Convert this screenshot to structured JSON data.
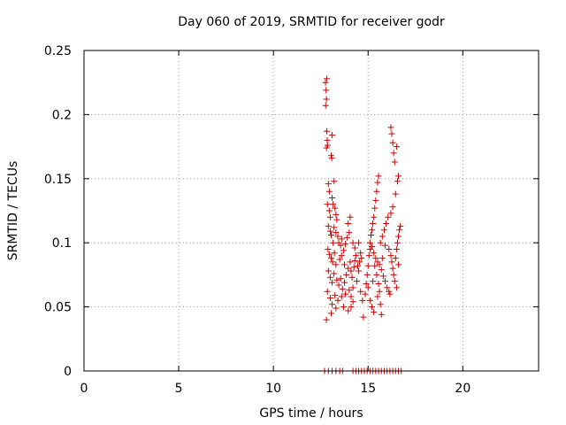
{
  "chart_data": {
    "type": "scatter",
    "title": "Day 060 of 2019, SRMTID for receiver godr",
    "xlabel": "GPS time / hours",
    "ylabel": "SRMTID / TECUs",
    "xlim": [
      0,
      24
    ],
    "ylim": [
      0,
      0.25
    ],
    "x_ticks": [
      0,
      5,
      10,
      15,
      20
    ],
    "x_tick_labels": [
      "0",
      "5",
      "10",
      "15",
      "20"
    ],
    "y_ticks": [
      0,
      0.05,
      0.1,
      0.15,
      0.2,
      0.25
    ],
    "y_tick_labels": [
      "0",
      "0.05",
      "0.1",
      "0.15",
      "0.2",
      "0.25"
    ],
    "grid": true,
    "marker": "+",
    "colors": {
      "points": "#cc0000",
      "grid": "#a0a0a0",
      "axes": "#000000"
    },
    "series": [
      {
        "values": [
          [
            12.75,
            0.225
          ],
          [
            12.78,
            0.219
          ],
          [
            12.8,
            0.212
          ],
          [
            12.82,
            0.228
          ],
          [
            12.76,
            0.207
          ],
          [
            12.82,
            0.187
          ],
          [
            12.84,
            0.18
          ],
          [
            12.86,
            0.176
          ],
          [
            12.8,
            0.174
          ],
          [
            13.1,
            0.184
          ],
          [
            12.9,
            0.146
          ],
          [
            12.95,
            0.14
          ],
          [
            13.05,
            0.168
          ],
          [
            13.08,
            0.166
          ],
          [
            13.2,
            0.148
          ],
          [
            12.85,
            0.13
          ],
          [
            12.95,
            0.125
          ],
          [
            13.0,
            0.12
          ],
          [
            13.1,
            0.135
          ],
          [
            13.15,
            0.13
          ],
          [
            13.25,
            0.127
          ],
          [
            13.3,
            0.122
          ],
          [
            12.9,
            0.113
          ],
          [
            13.0,
            0.109
          ],
          [
            13.05,
            0.106
          ],
          [
            13.2,
            0.112
          ],
          [
            13.35,
            0.118
          ],
          [
            13.4,
            0.105
          ],
          [
            13.45,
            0.1
          ],
          [
            13.55,
            0.098
          ],
          [
            12.88,
            0.095
          ],
          [
            12.95,
            0.091
          ],
          [
            13.05,
            0.088
          ],
          [
            13.12,
            0.085
          ],
          [
            13.22,
            0.092
          ],
          [
            13.3,
            0.083
          ],
          [
            13.5,
            0.087
          ],
          [
            13.6,
            0.09
          ],
          [
            13.7,
            0.094
          ],
          [
            13.8,
            0.099
          ],
          [
            13.9,
            0.104
          ],
          [
            14.0,
            0.108
          ],
          [
            13.95,
            0.115
          ],
          [
            14.05,
            0.12
          ],
          [
            12.9,
            0.078
          ],
          [
            13.0,
            0.073
          ],
          [
            13.1,
            0.069
          ],
          [
            13.2,
            0.076
          ],
          [
            13.35,
            0.071
          ],
          [
            13.45,
            0.067
          ],
          [
            13.55,
            0.072
          ],
          [
            13.65,
            0.064
          ],
          [
            13.75,
            0.069
          ],
          [
            13.85,
            0.075
          ],
          [
            13.95,
            0.08
          ],
          [
            14.05,
            0.085
          ],
          [
            14.1,
            0.078
          ],
          [
            14.15,
            0.073
          ],
          [
            14.25,
            0.081
          ],
          [
            14.3,
            0.086
          ],
          [
            14.35,
            0.09
          ],
          [
            12.85,
            0.062
          ],
          [
            13.0,
            0.057
          ],
          [
            13.1,
            0.052
          ],
          [
            13.25,
            0.059
          ],
          [
            13.4,
            0.055
          ],
          [
            13.6,
            0.058
          ],
          [
            13.8,
            0.06
          ],
          [
            14.0,
            0.063
          ],
          [
            14.1,
            0.058
          ],
          [
            14.2,
            0.054
          ],
          [
            12.8,
            0.04
          ],
          [
            13.05,
            0.045
          ],
          [
            13.3,
            0.049
          ],
          [
            13.7,
            0.05
          ],
          [
            13.95,
            0.047
          ],
          [
            14.1,
            0.05
          ],
          [
            14.2,
            0.065
          ],
          [
            14.4,
            0.07
          ],
          [
            14.5,
            0.078
          ],
          [
            14.55,
            0.085
          ],
          [
            14.6,
            0.062
          ],
          [
            14.7,
            0.055
          ],
          [
            14.75,
            0.042
          ],
          [
            14.85,
            0.06
          ],
          [
            14.9,
            0.068
          ],
          [
            14.95,
            0.075
          ],
          [
            15.0,
            0.082
          ],
          [
            15.05,
            0.09
          ],
          [
            15.1,
            0.095
          ],
          [
            15.1,
            0.1
          ],
          [
            15.15,
            0.106
          ],
          [
            15.2,
            0.11
          ],
          [
            15.25,
            0.115
          ],
          [
            15.3,
            0.12
          ],
          [
            15.35,
            0.127
          ],
          [
            15.4,
            0.133
          ],
          [
            15.45,
            0.14
          ],
          [
            15.5,
            0.147
          ],
          [
            15.55,
            0.152
          ],
          [
            15.2,
            0.097
          ],
          [
            15.3,
            0.092
          ],
          [
            15.4,
            0.088
          ],
          [
            15.5,
            0.085
          ],
          [
            15.6,
            0.083
          ],
          [
            15.7,
            0.079
          ],
          [
            15.8,
            0.074
          ],
          [
            15.9,
            0.07
          ],
          [
            16.0,
            0.065
          ],
          [
            16.1,
            0.062
          ],
          [
            15.1,
            0.055
          ],
          [
            15.2,
            0.05
          ],
          [
            15.3,
            0.046
          ],
          [
            15.5,
            0.058
          ],
          [
            15.7,
            0.044
          ],
          [
            15.0,
            0.065
          ],
          [
            15.25,
            0.07
          ],
          [
            15.45,
            0.075
          ],
          [
            15.65,
            0.1
          ],
          [
            15.75,
            0.105
          ],
          [
            15.85,
            0.11
          ],
          [
            15.95,
            0.115
          ],
          [
            16.05,
            0.12
          ],
          [
            16.1,
            0.095
          ],
          [
            16.2,
            0.09
          ],
          [
            16.25,
            0.085
          ],
          [
            16.3,
            0.08
          ],
          [
            16.35,
            0.075
          ],
          [
            16.4,
            0.07
          ],
          [
            16.45,
            0.088
          ],
          [
            16.5,
            0.095
          ],
          [
            16.55,
            0.1
          ],
          [
            16.6,
            0.105
          ],
          [
            16.65,
            0.11
          ],
          [
            16.7,
            0.113
          ],
          [
            16.2,
            0.19
          ],
          [
            16.25,
            0.185
          ],
          [
            16.3,
            0.178
          ],
          [
            16.35,
            0.17
          ],
          [
            16.4,
            0.163
          ],
          [
            16.5,
            0.175
          ],
          [
            16.55,
            0.148
          ],
          [
            16.6,
            0.152
          ],
          [
            16.45,
            0.138
          ],
          [
            16.3,
            0.128
          ],
          [
            16.2,
            0.123
          ],
          [
            16.15,
            0.06
          ],
          [
            16.5,
            0.065
          ],
          [
            16.6,
            0.083
          ],
          [
            15.9,
            0.098
          ],
          [
            14.3,
            0.096
          ],
          [
            14.5,
            0.1
          ],
          [
            14.6,
            0.092
          ],
          [
            14.45,
            0.082
          ],
          [
            14.65,
            0.088
          ],
          [
            15.55,
            0.068
          ],
          [
            15.6,
            0.062
          ],
          [
            15.65,
            0.052
          ],
          [
            15.35,
            0.082
          ],
          [
            15.75,
            0.088
          ],
          [
            13.15,
            0.1
          ],
          [
            13.3,
            0.108
          ],
          [
            13.6,
            0.103
          ],
          [
            14.2,
            0.1
          ],
          [
            13.75,
            0.083
          ]
        ]
      },
      {
        "values": [
          [
            12.7,
            0
          ],
          [
            12.9,
            0
          ],
          [
            13.1,
            0
          ],
          [
            13.3,
            0
          ],
          [
            13.5,
            0
          ],
          [
            13.65,
            0
          ],
          [
            14.2,
            0
          ],
          [
            14.35,
            0
          ],
          [
            14.5,
            0
          ],
          [
            14.65,
            0
          ],
          [
            14.8,
            0
          ],
          [
            14.95,
            0
          ],
          [
            15.1,
            0
          ],
          [
            15.25,
            0
          ],
          [
            15.4,
            0
          ],
          [
            15.55,
            0
          ],
          [
            15.7,
            0
          ],
          [
            15.85,
            0
          ],
          [
            16.0,
            0
          ],
          [
            16.15,
            0
          ],
          [
            16.3,
            0
          ],
          [
            16.45,
            0
          ],
          [
            16.6,
            0
          ],
          [
            16.75,
            0
          ]
        ]
      }
    ]
  }
}
